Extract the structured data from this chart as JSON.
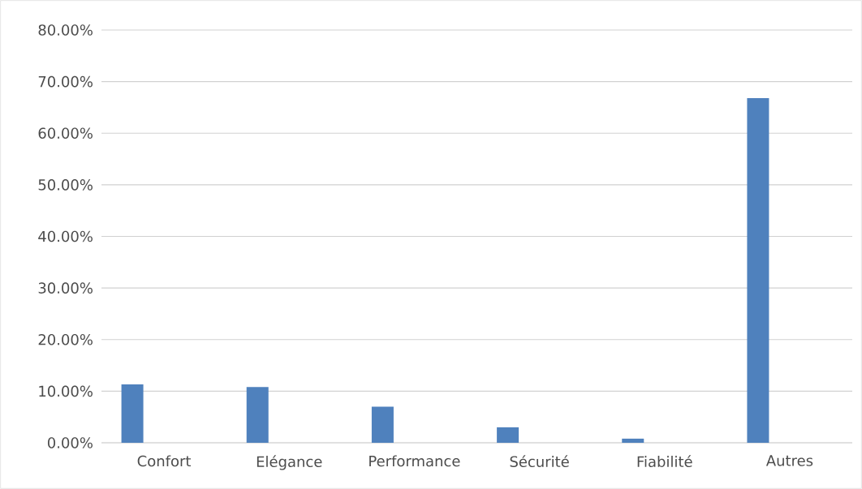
{
  "chart_data": {
    "type": "bar",
    "categories": [
      "Confort",
      "Elégance",
      "Performance",
      "Sécurité",
      "Fiabilité",
      "Autres"
    ],
    "values": [
      11.3,
      10.8,
      7.0,
      3.0,
      0.8,
      66.8
    ],
    "color": "#4f81bd",
    "ylim": [
      0,
      80
    ],
    "yticks": [
      {
        "value": 0,
        "label": "0.00%"
      },
      {
        "value": 10,
        "label": "10.00%"
      },
      {
        "value": 20,
        "label": "20.00%"
      },
      {
        "value": 30,
        "label": "30.00%"
      },
      {
        "value": 40,
        "label": "40.00%"
      },
      {
        "value": 50,
        "label": "50.00%"
      },
      {
        "value": 60,
        "label": "60.00%"
      },
      {
        "value": 70,
        "label": "70.00%"
      },
      {
        "value": 80,
        "label": "80.00%"
      }
    ],
    "grid": "y"
  }
}
